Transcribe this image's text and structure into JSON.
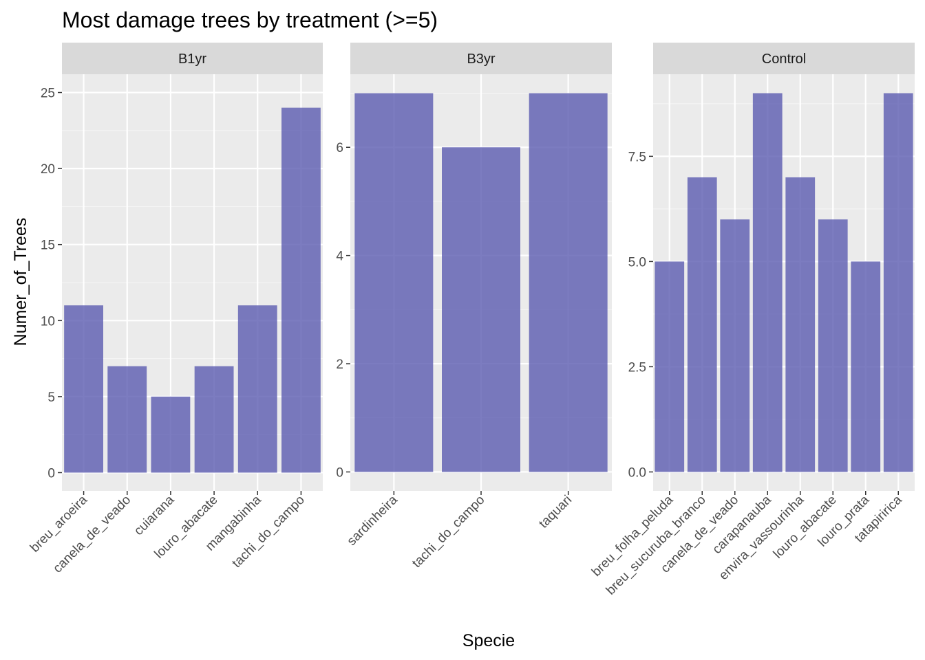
{
  "chart_data": {
    "type": "bar",
    "title": "Most damage trees by treatment (>=5)",
    "xlabel": "Specie",
    "ylabel": "Numer_of_Trees",
    "colors": {
      "bar": "#5b5bb0",
      "panel_bg": "#ebebeb",
      "strip_bg": "#d9d9d9",
      "grid": "#ffffff",
      "tick": "#333333",
      "tick_label": "#4d4d4d"
    },
    "grid": true,
    "facets": [
      {
        "label": "B1yr",
        "categories": [
          "breu_aroeira",
          "canela_de_veado",
          "cuiarana",
          "louro_abacate",
          "mangabinha",
          "tachi_do_campo"
        ],
        "values": [
          11,
          7,
          5,
          7,
          11,
          24
        ],
        "ylim": [
          -1.2,
          26.2
        ],
        "yticks": [
          0,
          5,
          10,
          15,
          20,
          25
        ],
        "ytick_labels": [
          "0",
          "5",
          "10",
          "15",
          "20",
          "25"
        ]
      },
      {
        "label": "B3yr",
        "categories": [
          "sardinheira",
          "tachi_do_campo",
          "taquari"
        ],
        "values": [
          7,
          6,
          7
        ],
        "ylim": [
          -0.35,
          7.35
        ],
        "yticks": [
          0,
          2,
          4,
          6
        ],
        "ytick_labels": [
          "0",
          "2",
          "4",
          "6"
        ]
      },
      {
        "label": "Control",
        "categories": [
          "breu_folha_peluda",
          "breu_sucuruba_branco",
          "canela_de_veado",
          "carapanauba",
          "envira_vassourinha",
          "louro_abacate",
          "louro_prata",
          "tatapiririca"
        ],
        "values": [
          5,
          7,
          6,
          9,
          7,
          6,
          5,
          9
        ],
        "ylim": [
          -0.45,
          9.45
        ],
        "yticks": [
          0,
          2.5,
          5,
          7.5
        ],
        "ytick_labels": [
          "0.0",
          "2.5",
          "5.0",
          "7.5"
        ]
      }
    ]
  }
}
